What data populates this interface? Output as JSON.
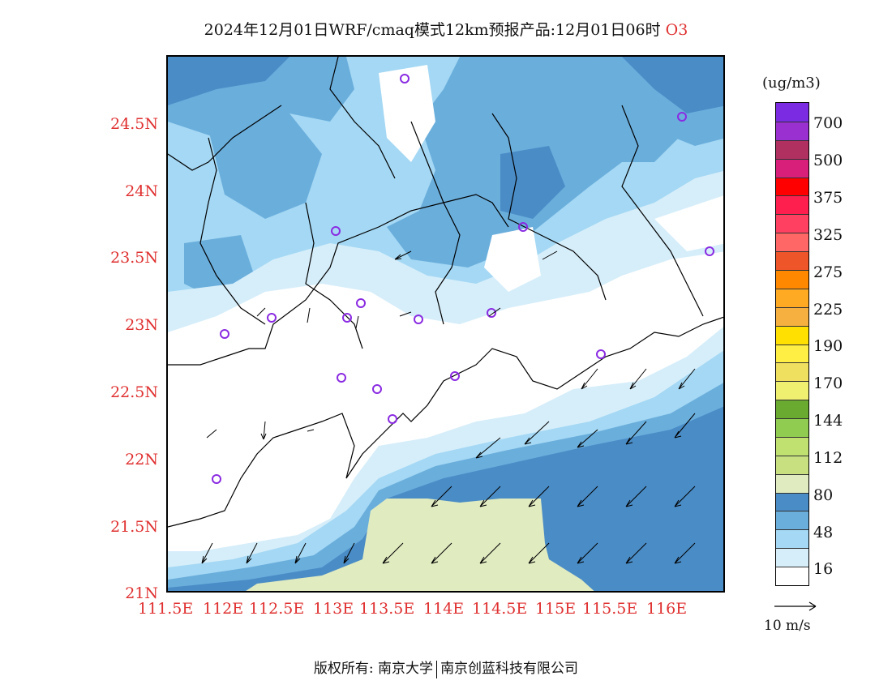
{
  "title": {
    "main": "2024年12月01日WRF/cmaq模式12km预报产品:12月01日06时",
    "species": "O3"
  },
  "map": {
    "lat_labels": [
      "24.5N",
      "24N",
      "23.5N",
      "23N",
      "22.5N",
      "22N",
      "21.5N",
      "21N"
    ],
    "lon_labels": [
      "111.5E",
      "112E",
      "112.5E",
      "113E",
      "113.5E",
      "114E",
      "114.5E",
      "115E",
      "115.5E",
      "116E"
    ]
  },
  "colorbar": {
    "unit": "(ug/m3)",
    "labels": [
      "700",
      "500",
      "375",
      "325",
      "275",
      "225",
      "190",
      "170",
      "144",
      "112",
      "80",
      "48",
      "16"
    ],
    "colors": [
      "#7b2be2",
      "#9b30d0",
      "#b03060",
      "#d81f7a",
      "#ff0000",
      "#ff1f4f",
      "#ff4060",
      "#ff6666",
      "#ee5528",
      "#ff8800",
      "#ffaa22",
      "#f5b040",
      "#ffe000",
      "#ffee44",
      "#f0e060",
      "#f0f070",
      "#6aaa30",
      "#90cc50",
      "#c0e070",
      "#c8e080",
      "#e0ebc0",
      "#4a8cc6",
      "#6aaedc",
      "#a4d8f4",
      "#d6eefa",
      "#ffffff"
    ]
  },
  "wind_ref": {
    "label": "10 m/s"
  },
  "copyright": {
    "left": "版权所有: 南京大学",
    "right": "南京创蓝科技有限公司"
  }
}
